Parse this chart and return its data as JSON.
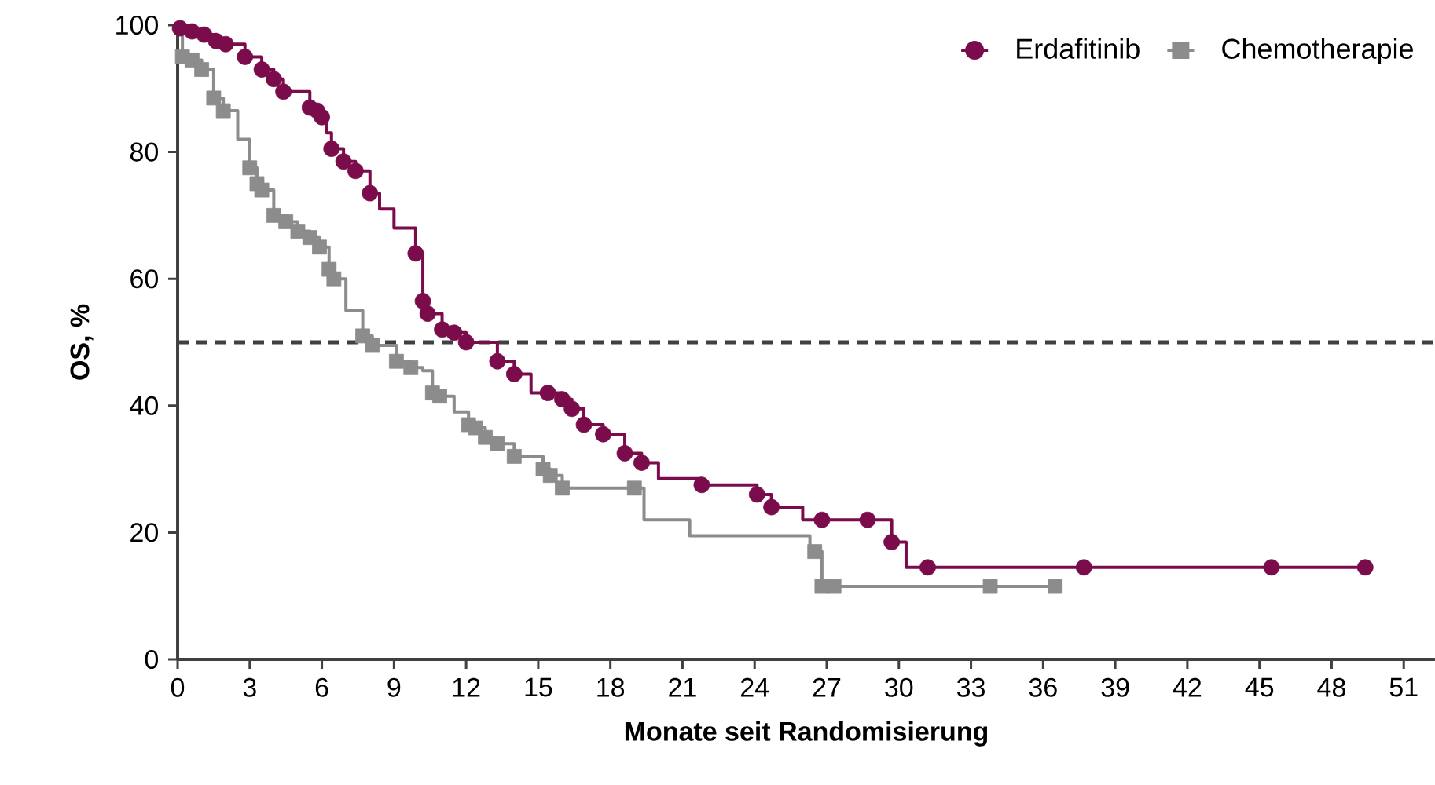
{
  "chart_data": {
    "type": "step",
    "xlabel": "Monate seit Randomisierung",
    "ylabel": "OS, %",
    "xlim": [
      0,
      52.3
    ],
    "ylim": [
      0,
      100
    ],
    "xticks": [
      0,
      3,
      6,
      9,
      12,
      15,
      18,
      21,
      24,
      27,
      30,
      33,
      36,
      39,
      42,
      45,
      48,
      51
    ],
    "yticks": [
      0,
      20,
      40,
      60,
      80,
      100
    ],
    "grid": false,
    "legend": "top right",
    "series": [
      {
        "name": "Erdafitinib",
        "color": "#7b0c4c",
        "x": [
          0,
          0.6,
          1.1,
          1.6,
          2,
          2.8,
          3.5,
          4,
          4.4,
          5.5,
          6,
          6.2,
          6.4,
          6.9,
          7.4,
          8,
          8.4,
          9,
          9.9,
          10.2,
          10.4,
          11,
          11.5,
          12,
          13.3,
          14,
          14.7,
          16,
          16.4,
          16.9,
          17.7,
          18.6,
          19.3,
          20,
          21.8,
          24.1,
          24.7,
          26,
          28.7,
          29.7,
          30.3,
          49.4
        ],
        "values": [
          100,
          99,
          98.5,
          97.5,
          97,
          95,
          93,
          91.5,
          89.5,
          87,
          85.5,
          83,
          80.5,
          78.5,
          77,
          73.5,
          71,
          68,
          64,
          56.5,
          54.5,
          52,
          51.5,
          50,
          47,
          45,
          42,
          41,
          39.5,
          37,
          35.5,
          32.5,
          31,
          28.5,
          27.5,
          26,
          24,
          22,
          22,
          18.5,
          14.5,
          14.5
        ]
      },
      {
        "type": "scatter",
        "color": "#7b0c4c",
        "marker": "circle",
        "x": [
          0.1,
          0.6,
          1.1,
          1.6,
          2,
          2.8,
          3.5,
          4,
          4.4,
          5.5,
          5.8,
          6,
          6.4,
          6.9,
          7.4,
          8,
          9.9,
          10.2,
          10.4,
          11,
          11.5,
          12,
          13.3,
          14,
          15.4,
          16,
          16.4,
          16.9,
          17.7,
          18.6,
          19.3,
          21.8,
          24.1,
          24.7,
          26.8,
          28.7,
          29.7,
          31.2,
          37.7,
          45.5,
          49.4
        ],
        "values": [
          99.5,
          99,
          98.5,
          97.5,
          97,
          95,
          93,
          91.5,
          89.5,
          87,
          86.5,
          85.5,
          80.5,
          78.5,
          77,
          73.5,
          64,
          56.5,
          54.5,
          52,
          51.5,
          50,
          47,
          45,
          42,
          41,
          39.5,
          37,
          35.5,
          32.5,
          31,
          27.5,
          26,
          24,
          22,
          22,
          18.5,
          14.5,
          14.5,
          14.5,
          14.5
        ]
      },
      {
        "name": "Chemotherapie",
        "color": "#8c8c8c",
        "x": [
          0,
          0.2,
          0.6,
          1,
          1.5,
          1.9,
          2.5,
          3,
          3.3,
          3.5,
          4,
          4.5,
          5,
          5.5,
          5.9,
          6.3,
          6.5,
          7,
          7.7,
          8.1,
          9.1,
          9.7,
          10.2,
          10.6,
          10.9,
          11.5,
          12.1,
          12.4,
          12.8,
          13.3,
          14,
          15.2,
          15.5,
          16,
          19.4,
          21.3,
          26.3,
          26.8,
          36.5
        ],
        "values": [
          100,
          95,
          94.5,
          93,
          88.5,
          86.5,
          82,
          77.5,
          75,
          74,
          70,
          69,
          67.5,
          66.5,
          65,
          61.5,
          60,
          55,
          51,
          49.5,
          47,
          46,
          45.5,
          42,
          41.5,
          39,
          37,
          36.5,
          35,
          34,
          32,
          30,
          29,
          27,
          22,
          19.5,
          17,
          11.5,
          11.5
        ]
      },
      {
        "type": "scatter",
        "color": "#8c8c8c",
        "marker": "square",
        "x": [
          0.2,
          0.6,
          1,
          1.5,
          1.9,
          3,
          3.3,
          3.5,
          4,
          4.5,
          5,
          5.5,
          5.9,
          6.3,
          6.5,
          7.7,
          8.1,
          9.1,
          9.7,
          10.6,
          10.9,
          12.1,
          12.4,
          12.8,
          13.3,
          14,
          15.2,
          15.5,
          16,
          19,
          26.5,
          26.8,
          27.3,
          33.8,
          36.5
        ],
        "values": [
          95,
          94.5,
          93,
          88.5,
          86.5,
          77.5,
          75,
          74,
          70,
          69,
          67.5,
          66.5,
          65,
          61.5,
          60,
          51,
          49.5,
          47,
          46,
          42,
          41.5,
          37,
          36.5,
          35,
          34,
          32,
          30,
          29,
          27,
          27,
          17,
          11.5,
          11.5,
          11.5,
          11.5
        ]
      }
    ],
    "ref_lines": [
      {
        "axis": "y",
        "value": 50,
        "color": "#404040",
        "line_style": "dashed"
      }
    ]
  }
}
